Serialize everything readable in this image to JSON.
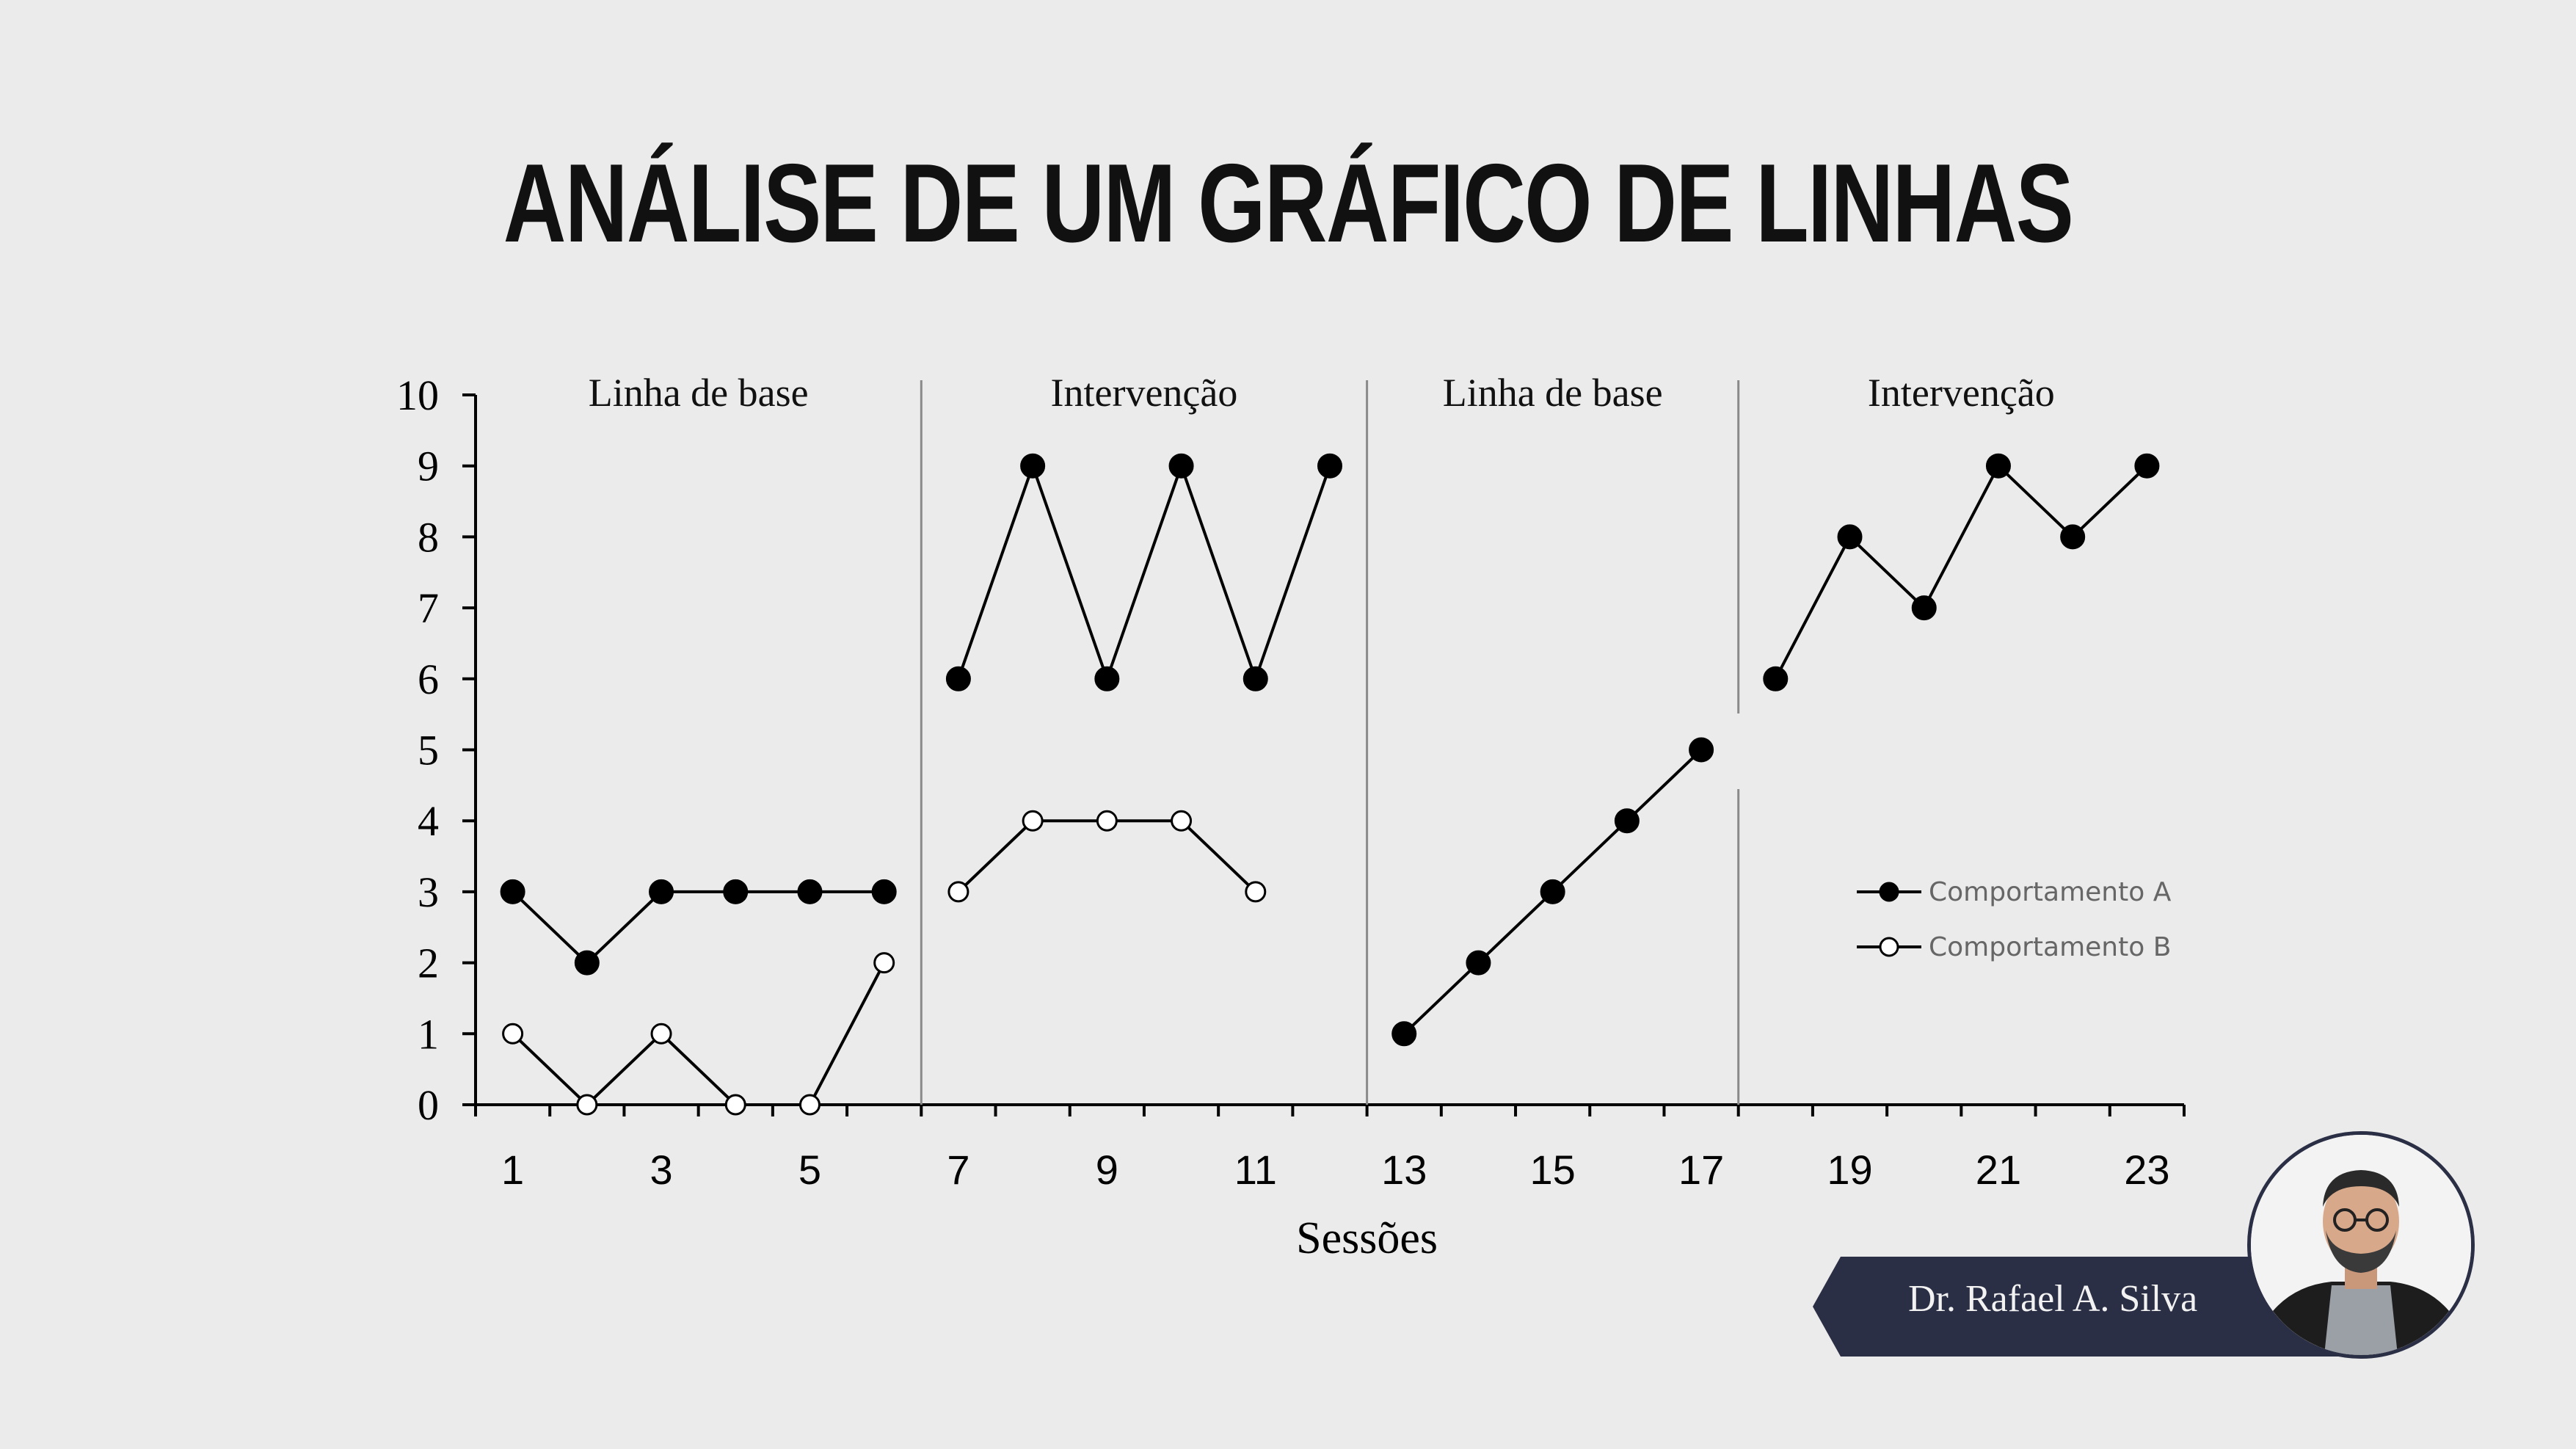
{
  "title": "ANÁLISE DE UM GRÁFICO DE LINHAS",
  "author_name": "Dr. Rafael A. Silva",
  "chart_data": {
    "type": "line",
    "xlabel": "Sessões",
    "ylabel": "",
    "ylim": [
      0,
      10
    ],
    "yticks": [
      0,
      1,
      2,
      3,
      4,
      5,
      6,
      7,
      8,
      9,
      10
    ],
    "xticks": [
      1,
      3,
      5,
      7,
      9,
      11,
      13,
      15,
      17,
      19,
      21,
      23
    ],
    "phases": [
      {
        "label": "Linha de base",
        "sessions": [
          1,
          6
        ]
      },
      {
        "label": "Intervenção",
        "sessions": [
          7,
          12
        ]
      },
      {
        "label": "Linha de base",
        "sessions": [
          13,
          17
        ]
      },
      {
        "label": "Intervenção",
        "sessions": [
          18,
          23
        ]
      }
    ],
    "legend_position": "right",
    "series": [
      {
        "name": "Comportamento A",
        "marker": "filled",
        "segments": [
          {
            "x": [
              1,
              2,
              3,
              4,
              5,
              6
            ],
            "y": [
              3,
              2,
              3,
              3,
              3,
              3
            ]
          },
          {
            "x": [
              7,
              8,
              9,
              10,
              11,
              12
            ],
            "y": [
              6,
              9,
              6,
              9,
              6,
              9
            ]
          },
          {
            "x": [
              13,
              14,
              15,
              16,
              17
            ],
            "y": [
              1,
              2,
              3,
              4,
              5
            ]
          },
          {
            "x": [
              18,
              19,
              20,
              21,
              22,
              23
            ],
            "y": [
              6,
              8,
              7,
              9,
              8,
              9
            ]
          }
        ]
      },
      {
        "name": "Comportamento B",
        "marker": "open",
        "segments": [
          {
            "x": [
              1,
              2,
              3,
              4,
              5,
              6
            ],
            "y": [
              1,
              0,
              1,
              0,
              0,
              2
            ]
          },
          {
            "x": [
              7,
              8,
              9,
              10,
              11
            ],
            "y": [
              3,
              4,
              4,
              4,
              3
            ]
          }
        ]
      }
    ]
  }
}
